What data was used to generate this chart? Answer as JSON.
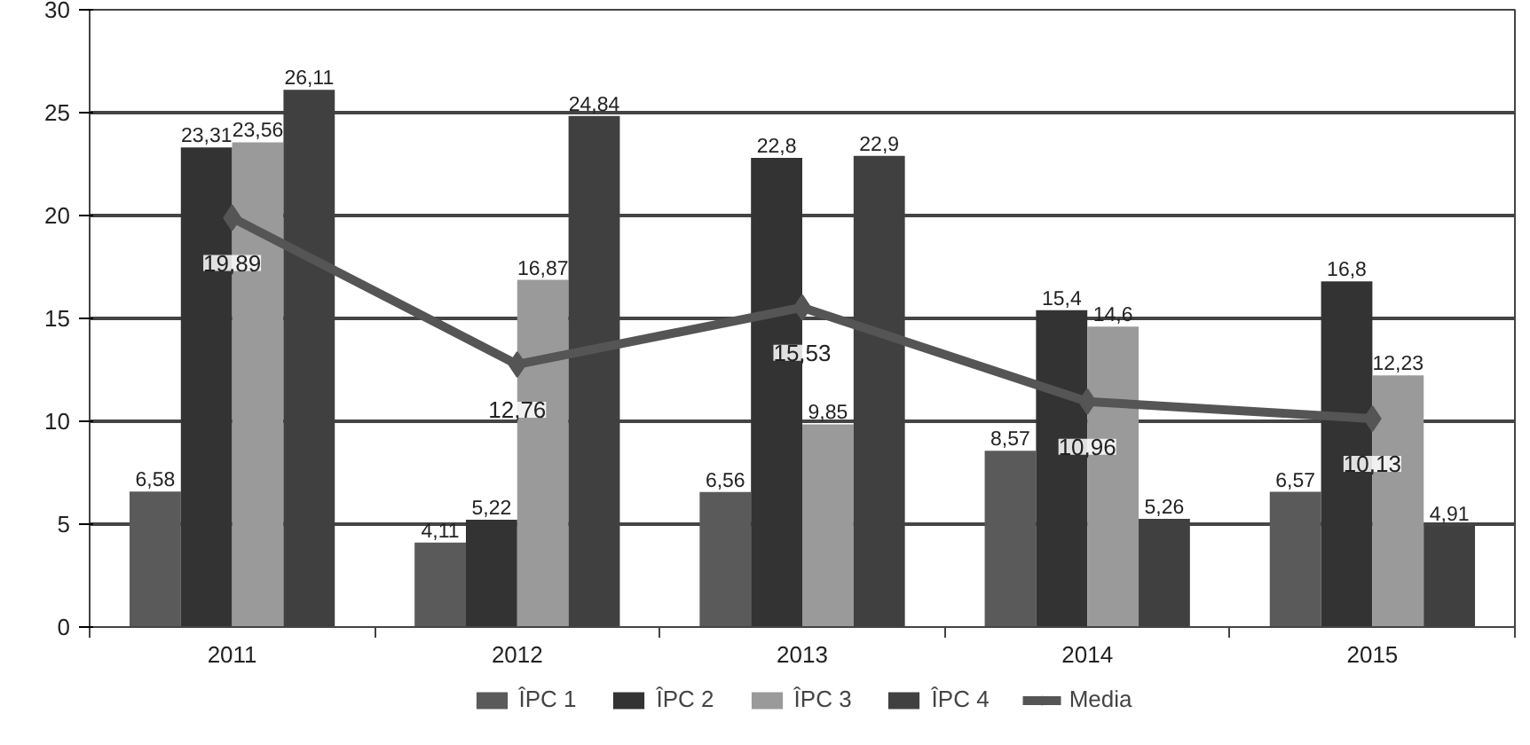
{
  "chart_data": {
    "type": "bar",
    "categories": [
      "2011",
      "2012",
      "2013",
      "2014",
      "2015"
    ],
    "series": [
      {
        "name": "ÎPC 1",
        "color": "#5a5a5a",
        "values": [
          6.58,
          4.11,
          6.56,
          8.57,
          6.57
        ],
        "value_labels": [
          "6,58",
          "4,11",
          "6,56",
          "8,57",
          "6,57"
        ]
      },
      {
        "name": "ÎPC 2",
        "color": "#333333",
        "values": [
          23.31,
          5.22,
          22.8,
          15.4,
          16.8
        ],
        "value_labels": [
          "23,31",
          "5,22",
          "22,8",
          "15,4",
          "16,8"
        ]
      },
      {
        "name": "ÎPC 3",
        "color": "#9a9a9a",
        "values": [
          23.56,
          16.87,
          9.85,
          14.6,
          12.23
        ],
        "value_labels": [
          "23,56",
          "16,87",
          "9,85",
          "14,6",
          "12,23"
        ]
      },
      {
        "name": "ÎPC 4",
        "color": "#404040",
        "values": [
          26.11,
          24.84,
          22.9,
          5.26,
          4.91
        ],
        "value_labels": [
          "26,11",
          "24,84",
          "22,9",
          "5,26",
          "4,91"
        ]
      },
      {
        "name": "Media",
        "type": "line",
        "marker": "diamond",
        "color": "#555555",
        "values": [
          19.89,
          12.76,
          15.53,
          10.96,
          10.13
        ],
        "value_labels": [
          "19,89",
          "12,76",
          "15,53",
          "10,96",
          "10,13"
        ]
      }
    ],
    "ylim": [
      0,
      30
    ],
    "yticks": [
      0,
      5,
      10,
      15,
      20,
      25,
      30
    ],
    "grid": "y",
    "legend": "bottom"
  }
}
